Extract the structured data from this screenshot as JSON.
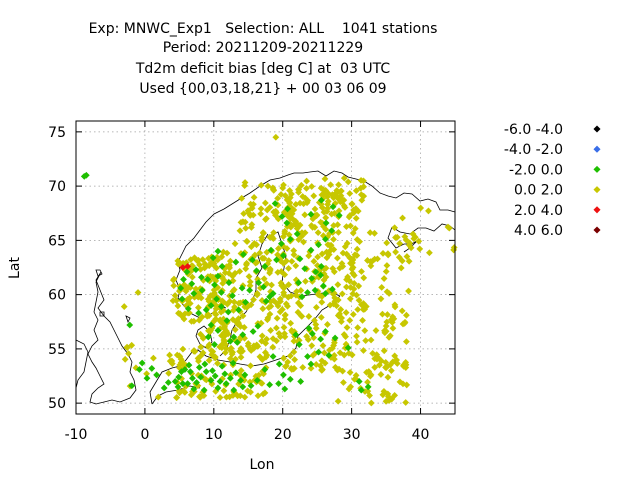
{
  "chart_data": {
    "type": "scatter",
    "title_lines": [
      "Exp: MNWC_Exp1   Selection: ALL    1041 stations",
      "Period: 20211209-20211229",
      "Td2m deficit bias [deg C] at  03 UTC",
      "Used {00,03,18,21} + 00 03 06 09"
    ],
    "xlabel": "Lon",
    "ylabel": "Lat",
    "xlim": [
      -10,
      45
    ],
    "ylim": [
      49,
      76
    ],
    "xticks": [
      "-10",
      "0",
      "10",
      "20",
      "30",
      "40"
    ],
    "yticks": [
      "50",
      "55",
      "60",
      "65",
      "70",
      "75"
    ],
    "grid": true,
    "legend_position": "right",
    "legend": [
      {
        "label": "-6.0 -4.0",
        "color": "#000000"
      },
      {
        "label": "-4.0 -2.0",
        "color": "#3a6ee8"
      },
      {
        "label": "-2.0 0.0",
        "color": "#1fbf00"
      },
      {
        "label": "0.0 2.0",
        "color": "#c7c700"
      },
      {
        "label": "2.0 4.0",
        "color": "#ee1111"
      },
      {
        "label": "4.0 6.0",
        "color": "#7a0000"
      }
    ],
    "series": [
      {
        "name": "-2.0 0.0",
        "color": "#1fbf00",
        "points": [
          [
            -8.5,
            71.0
          ],
          [
            -8.8,
            70.9
          ],
          [
            -2.2,
            57.2
          ],
          [
            -1.9,
            51.6
          ],
          [
            0.3,
            52.3
          ],
          [
            -0.4,
            53.7
          ],
          [
            -0.8,
            53.1
          ],
          [
            1.7,
            52.6
          ],
          [
            1.0,
            53.2
          ],
          [
            2.8,
            51.4
          ],
          [
            3.4,
            51.9
          ],
          [
            4.4,
            52.0
          ],
          [
            4.9,
            52.4
          ],
          [
            5.3,
            52.9
          ],
          [
            5.8,
            53.1
          ],
          [
            4.8,
            51.5
          ],
          [
            6.2,
            51.8
          ],
          [
            6.9,
            52.3
          ],
          [
            7.5,
            51.9
          ],
          [
            8.1,
            52.4
          ],
          [
            8.9,
            52.9
          ],
          [
            9.6,
            52.1
          ],
          [
            10.2,
            52.5
          ],
          [
            10.9,
            52.0
          ],
          [
            11.6,
            52.7
          ],
          [
            12.4,
            52.3
          ],
          [
            13.2,
            52.8
          ],
          [
            13.9,
            52.1
          ],
          [
            14.5,
            52.6
          ],
          [
            15.4,
            51.6
          ],
          [
            16.3,
            52.1
          ],
          [
            6.6,
            52.9
          ],
          [
            7.9,
            53.3
          ],
          [
            8.7,
            53.6
          ],
          [
            9.8,
            53.0
          ],
          [
            11.2,
            53.4
          ],
          [
            12.8,
            53.7
          ],
          [
            7.1,
            51.3
          ],
          [
            8.6,
            51.2
          ],
          [
            10.6,
            51.4
          ],
          [
            11.8,
            51.8
          ],
          [
            12.9,
            51.2
          ],
          [
            14.2,
            51.5
          ],
          [
            6.4,
            53.5
          ],
          [
            5.5,
            51.8
          ],
          [
            10.1,
            55.4
          ],
          [
            9.2,
            56.1
          ],
          [
            10.6,
            56.7
          ],
          [
            9.6,
            57.2
          ],
          [
            12.4,
            55.7
          ],
          [
            12.9,
            56.1
          ],
          [
            13.4,
            55.6
          ],
          [
            14.2,
            56.3
          ],
          [
            15.7,
            56.6
          ],
          [
            16.4,
            57.1
          ],
          [
            17.6,
            59.4
          ],
          [
            18.1,
            59.8
          ],
          [
            18.6,
            60.1
          ],
          [
            17.2,
            60.7
          ],
          [
            16.5,
            61.1
          ],
          [
            15.2,
            60.4
          ],
          [
            14.6,
            59.3
          ],
          [
            13.6,
            58.6
          ],
          [
            12.1,
            58.4
          ],
          [
            11.9,
            57.6
          ],
          [
            11.1,
            58.9
          ],
          [
            12.7,
            59.9
          ],
          [
            14.1,
            60.6
          ],
          [
            16.2,
            62.2
          ],
          [
            17.4,
            62.6
          ],
          [
            19.1,
            63.2
          ],
          [
            20.1,
            63.6
          ],
          [
            15.6,
            63.2
          ],
          [
            14.3,
            63.7
          ],
          [
            13.2,
            63.0
          ],
          [
            18.3,
            64.1
          ],
          [
            19.8,
            64.7
          ],
          [
            21.1,
            65.1
          ],
          [
            22.1,
            65.6
          ],
          [
            20.6,
            66.6
          ],
          [
            19.9,
            67.2
          ],
          [
            20.7,
            67.9
          ],
          [
            18.9,
            68.4
          ],
          [
            7.4,
            62.3
          ],
          [
            6.1,
            62.1
          ],
          [
            5.6,
            61.4
          ],
          [
            5.2,
            60.6
          ],
          [
            5.4,
            59.6
          ],
          [
            6.3,
            58.7
          ],
          [
            7.8,
            58.3
          ],
          [
            8.9,
            58.6
          ],
          [
            9.6,
            59.0
          ],
          [
            10.4,
            59.6
          ],
          [
            11.1,
            60.2
          ],
          [
            10.1,
            60.9
          ],
          [
            9.1,
            61.4
          ],
          [
            8.2,
            61.6
          ],
          [
            6.8,
            61.0
          ],
          [
            7.1,
            60.1
          ],
          [
            8.3,
            60.4
          ],
          [
            10.6,
            61.7
          ],
          [
            11.2,
            62.6
          ],
          [
            12.2,
            61.1
          ],
          [
            9.9,
            63.4
          ],
          [
            10.6,
            64.0
          ],
          [
            22.8,
            59.8
          ],
          [
            23.6,
            60.2
          ],
          [
            24.7,
            60.4
          ],
          [
            25.9,
            60.8
          ],
          [
            26.2,
            60.1
          ],
          [
            27.2,
            60.5
          ],
          [
            24.8,
            62.1
          ],
          [
            24.2,
            61.5
          ],
          [
            25.5,
            61.8
          ],
          [
            22.3,
            61.1
          ],
          [
            23.2,
            62.4
          ],
          [
            25.6,
            62.6
          ],
          [
            22.5,
            63.3
          ],
          [
            24.1,
            64.1
          ],
          [
            25.2,
            64.6
          ],
          [
            26.2,
            65.1
          ],
          [
            27.1,
            65.9
          ],
          [
            26.3,
            66.6
          ],
          [
            28.2,
            67.3
          ],
          [
            27.3,
            68.1
          ],
          [
            25.6,
            68.7
          ],
          [
            24.1,
            67.4
          ],
          [
            23.8,
            56.9
          ],
          [
            24.3,
            56.4
          ],
          [
            25.5,
            55.9
          ],
          [
            22.4,
            55.4
          ],
          [
            21.9,
            56.3
          ],
          [
            26.2,
            56.6
          ],
          [
            27.6,
            56.0
          ],
          [
            25.2,
            54.7
          ],
          [
            31.1,
            52.0
          ],
          [
            31.4,
            51.2
          ],
          [
            32.4,
            51.5
          ],
          [
            24.1,
            53.6
          ],
          [
            23.6,
            54.3
          ],
          [
            26.7,
            54.4
          ],
          [
            29.5,
            55.1
          ],
          [
            18.6,
            54.3
          ],
          [
            19.5,
            53.6
          ],
          [
            17.4,
            53.1
          ],
          [
            20.1,
            52.6
          ],
          [
            21.1,
            52.2
          ],
          [
            22.6,
            52.0
          ],
          [
            18.1,
            51.7
          ],
          [
            19.4,
            51.8
          ],
          [
            20.3,
            51.3
          ]
        ]
      },
      {
        "name": "2.0 4.0",
        "color": "#ee1111",
        "points": [
          [
            5.5,
            62.5
          ],
          [
            6.2,
            62.6
          ]
        ]
      }
    ]
  }
}
